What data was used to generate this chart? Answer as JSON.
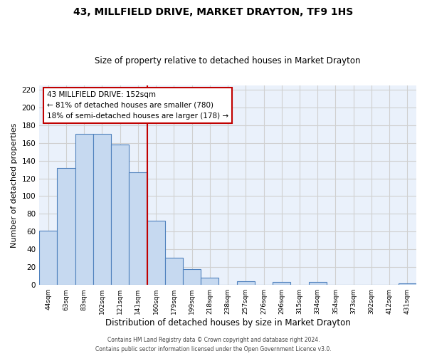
{
  "title": "43, MILLFIELD DRIVE, MARKET DRAYTON, TF9 1HS",
  "subtitle": "Size of property relative to detached houses in Market Drayton",
  "xlabel": "Distribution of detached houses by size in Market Drayton",
  "ylabel": "Number of detached properties",
  "bin_labels": [
    "44sqm",
    "63sqm",
    "83sqm",
    "102sqm",
    "121sqm",
    "141sqm",
    "160sqm",
    "179sqm",
    "199sqm",
    "218sqm",
    "238sqm",
    "257sqm",
    "276sqm",
    "296sqm",
    "315sqm",
    "334sqm",
    "354sqm",
    "373sqm",
    "392sqm",
    "412sqm",
    "431sqm"
  ],
  "bar_heights": [
    61,
    132,
    170,
    170,
    158,
    127,
    72,
    31,
    18,
    8,
    0,
    4,
    0,
    3,
    0,
    3,
    0,
    0,
    0,
    0,
    2
  ],
  "bar_color": "#c6d9f0",
  "bar_edge_color": "#4f81bd",
  "grid_color": "#d0d0d0",
  "bg_color": "#eaf1fb",
  "vline_color": "#c00000",
  "annotation_text": "43 MILLFIELD DRIVE: 152sqm\n← 81% of detached houses are smaller (780)\n18% of semi-detached houses are larger (178) →",
  "annotation_box_color": "#ffffff",
  "annotation_border_color": "#c00000",
  "ylim": [
    0,
    225
  ],
  "yticks": [
    0,
    20,
    40,
    60,
    80,
    100,
    120,
    140,
    160,
    180,
    200,
    220
  ],
  "footer_line1": "Contains HM Land Registry data © Crown copyright and database right 2024.",
  "footer_line2": "Contains public sector information licensed under the Open Government Licence v3.0."
}
